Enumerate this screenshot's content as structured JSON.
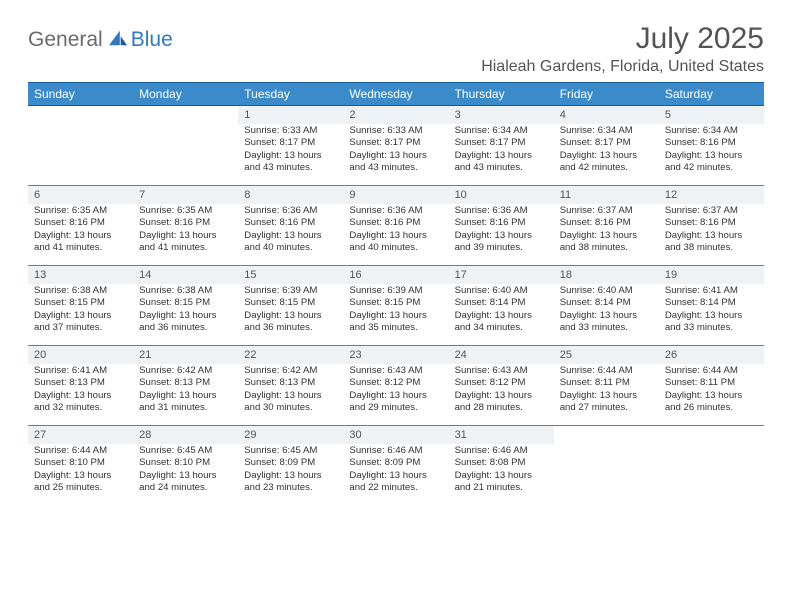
{
  "brand": {
    "part1": "General",
    "part2": "Blue"
  },
  "title": "July 2025",
  "location": "Hialeah Gardens, Florida, United States",
  "colors": {
    "header_bg": "#3b8bca",
    "header_border": "#1a5a94",
    "daynum_bg": "#eef2f5",
    "brand_blue": "#2f79c2",
    "brand_gray": "#6b6b6b",
    "text": "#333333"
  },
  "day_headers": [
    "Sunday",
    "Monday",
    "Tuesday",
    "Wednesday",
    "Thursday",
    "Friday",
    "Saturday"
  ],
  "weeks": [
    [
      null,
      null,
      {
        "n": "1",
        "sr": "6:33 AM",
        "ss": "8:17 PM",
        "dl": "13 hours and 43 minutes."
      },
      {
        "n": "2",
        "sr": "6:33 AM",
        "ss": "8:17 PM",
        "dl": "13 hours and 43 minutes."
      },
      {
        "n": "3",
        "sr": "6:34 AM",
        "ss": "8:17 PM",
        "dl": "13 hours and 43 minutes."
      },
      {
        "n": "4",
        "sr": "6:34 AM",
        "ss": "8:17 PM",
        "dl": "13 hours and 42 minutes."
      },
      {
        "n": "5",
        "sr": "6:34 AM",
        "ss": "8:16 PM",
        "dl": "13 hours and 42 minutes."
      }
    ],
    [
      {
        "n": "6",
        "sr": "6:35 AM",
        "ss": "8:16 PM",
        "dl": "13 hours and 41 minutes."
      },
      {
        "n": "7",
        "sr": "6:35 AM",
        "ss": "8:16 PM",
        "dl": "13 hours and 41 minutes."
      },
      {
        "n": "8",
        "sr": "6:36 AM",
        "ss": "8:16 PM",
        "dl": "13 hours and 40 minutes."
      },
      {
        "n": "9",
        "sr": "6:36 AM",
        "ss": "8:16 PM",
        "dl": "13 hours and 40 minutes."
      },
      {
        "n": "10",
        "sr": "6:36 AM",
        "ss": "8:16 PM",
        "dl": "13 hours and 39 minutes."
      },
      {
        "n": "11",
        "sr": "6:37 AM",
        "ss": "8:16 PM",
        "dl": "13 hours and 38 minutes."
      },
      {
        "n": "12",
        "sr": "6:37 AM",
        "ss": "8:16 PM",
        "dl": "13 hours and 38 minutes."
      }
    ],
    [
      {
        "n": "13",
        "sr": "6:38 AM",
        "ss": "8:15 PM",
        "dl": "13 hours and 37 minutes."
      },
      {
        "n": "14",
        "sr": "6:38 AM",
        "ss": "8:15 PM",
        "dl": "13 hours and 36 minutes."
      },
      {
        "n": "15",
        "sr": "6:39 AM",
        "ss": "8:15 PM",
        "dl": "13 hours and 36 minutes."
      },
      {
        "n": "16",
        "sr": "6:39 AM",
        "ss": "8:15 PM",
        "dl": "13 hours and 35 minutes."
      },
      {
        "n": "17",
        "sr": "6:40 AM",
        "ss": "8:14 PM",
        "dl": "13 hours and 34 minutes."
      },
      {
        "n": "18",
        "sr": "6:40 AM",
        "ss": "8:14 PM",
        "dl": "13 hours and 33 minutes."
      },
      {
        "n": "19",
        "sr": "6:41 AM",
        "ss": "8:14 PM",
        "dl": "13 hours and 33 minutes."
      }
    ],
    [
      {
        "n": "20",
        "sr": "6:41 AM",
        "ss": "8:13 PM",
        "dl": "13 hours and 32 minutes."
      },
      {
        "n": "21",
        "sr": "6:42 AM",
        "ss": "8:13 PM",
        "dl": "13 hours and 31 minutes."
      },
      {
        "n": "22",
        "sr": "6:42 AM",
        "ss": "8:13 PM",
        "dl": "13 hours and 30 minutes."
      },
      {
        "n": "23",
        "sr": "6:43 AM",
        "ss": "8:12 PM",
        "dl": "13 hours and 29 minutes."
      },
      {
        "n": "24",
        "sr": "6:43 AM",
        "ss": "8:12 PM",
        "dl": "13 hours and 28 minutes."
      },
      {
        "n": "25",
        "sr": "6:44 AM",
        "ss": "8:11 PM",
        "dl": "13 hours and 27 minutes."
      },
      {
        "n": "26",
        "sr": "6:44 AM",
        "ss": "8:11 PM",
        "dl": "13 hours and 26 minutes."
      }
    ],
    [
      {
        "n": "27",
        "sr": "6:44 AM",
        "ss": "8:10 PM",
        "dl": "13 hours and 25 minutes."
      },
      {
        "n": "28",
        "sr": "6:45 AM",
        "ss": "8:10 PM",
        "dl": "13 hours and 24 minutes."
      },
      {
        "n": "29",
        "sr": "6:45 AM",
        "ss": "8:09 PM",
        "dl": "13 hours and 23 minutes."
      },
      {
        "n": "30",
        "sr": "6:46 AM",
        "ss": "8:09 PM",
        "dl": "13 hours and 22 minutes."
      },
      {
        "n": "31",
        "sr": "6:46 AM",
        "ss": "8:08 PM",
        "dl": "13 hours and 21 minutes."
      },
      null,
      null
    ]
  ]
}
